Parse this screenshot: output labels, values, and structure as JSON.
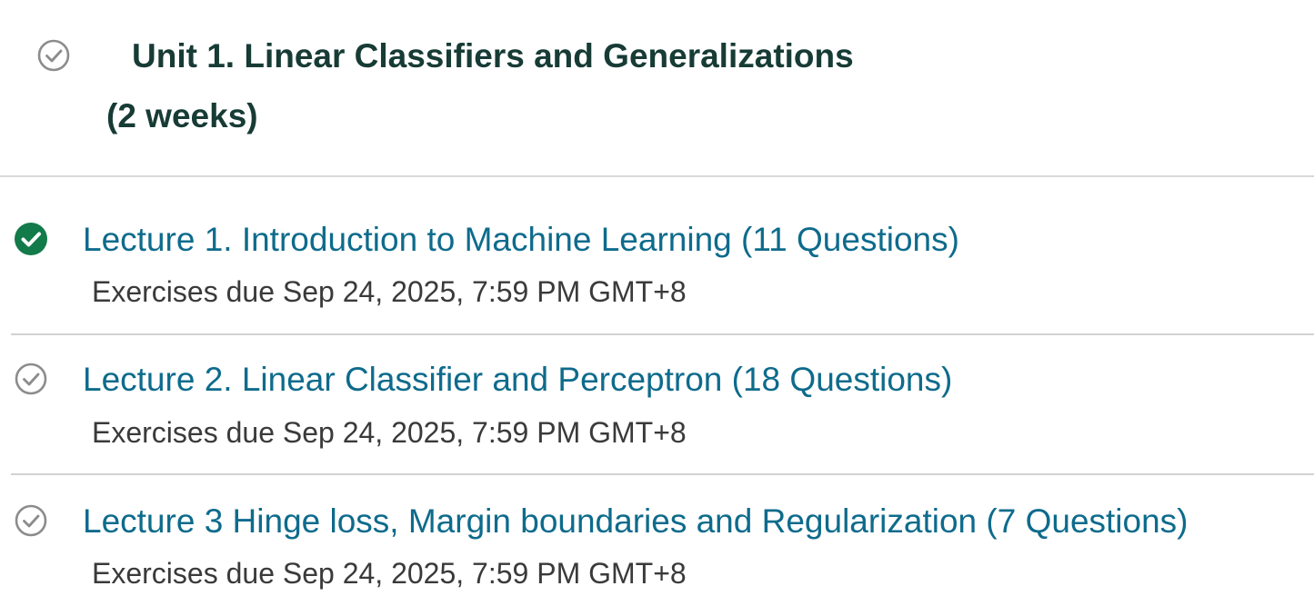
{
  "unit": {
    "title": "Unit 1. Linear Classifiers and Generalizations",
    "duration": "(2 weeks)",
    "status_icon": "check-circle-outline-icon"
  },
  "lectures": [
    {
      "title": "Lecture 1. Introduction to Machine Learning (11 Questions)",
      "due": "Exercises due Sep 24, 2025, 7:59 PM GMT+8",
      "completed": true,
      "status_icon": "check-circle-filled-icon"
    },
    {
      "title": "Lecture 2. Linear Classifier and Perceptron (18 Questions)",
      "due": "Exercises due Sep 24, 2025, 7:59 PM GMT+8",
      "completed": false,
      "status_icon": "check-circle-outline-icon"
    },
    {
      "title": "Lecture 3 Hinge loss, Margin boundaries and Regularization (7 Questions)",
      "due": "Exercises due Sep 24, 2025, 7:59 PM GMT+8",
      "completed": false,
      "status_icon": "check-circle-outline-icon"
    }
  ],
  "colors": {
    "heading": "#173b35",
    "link": "#0e6b8c",
    "body_text": "#3a3a3a",
    "completed": "#137a49",
    "incomplete_icon": "#8c8c8c",
    "divider": "#d9d9d9"
  }
}
